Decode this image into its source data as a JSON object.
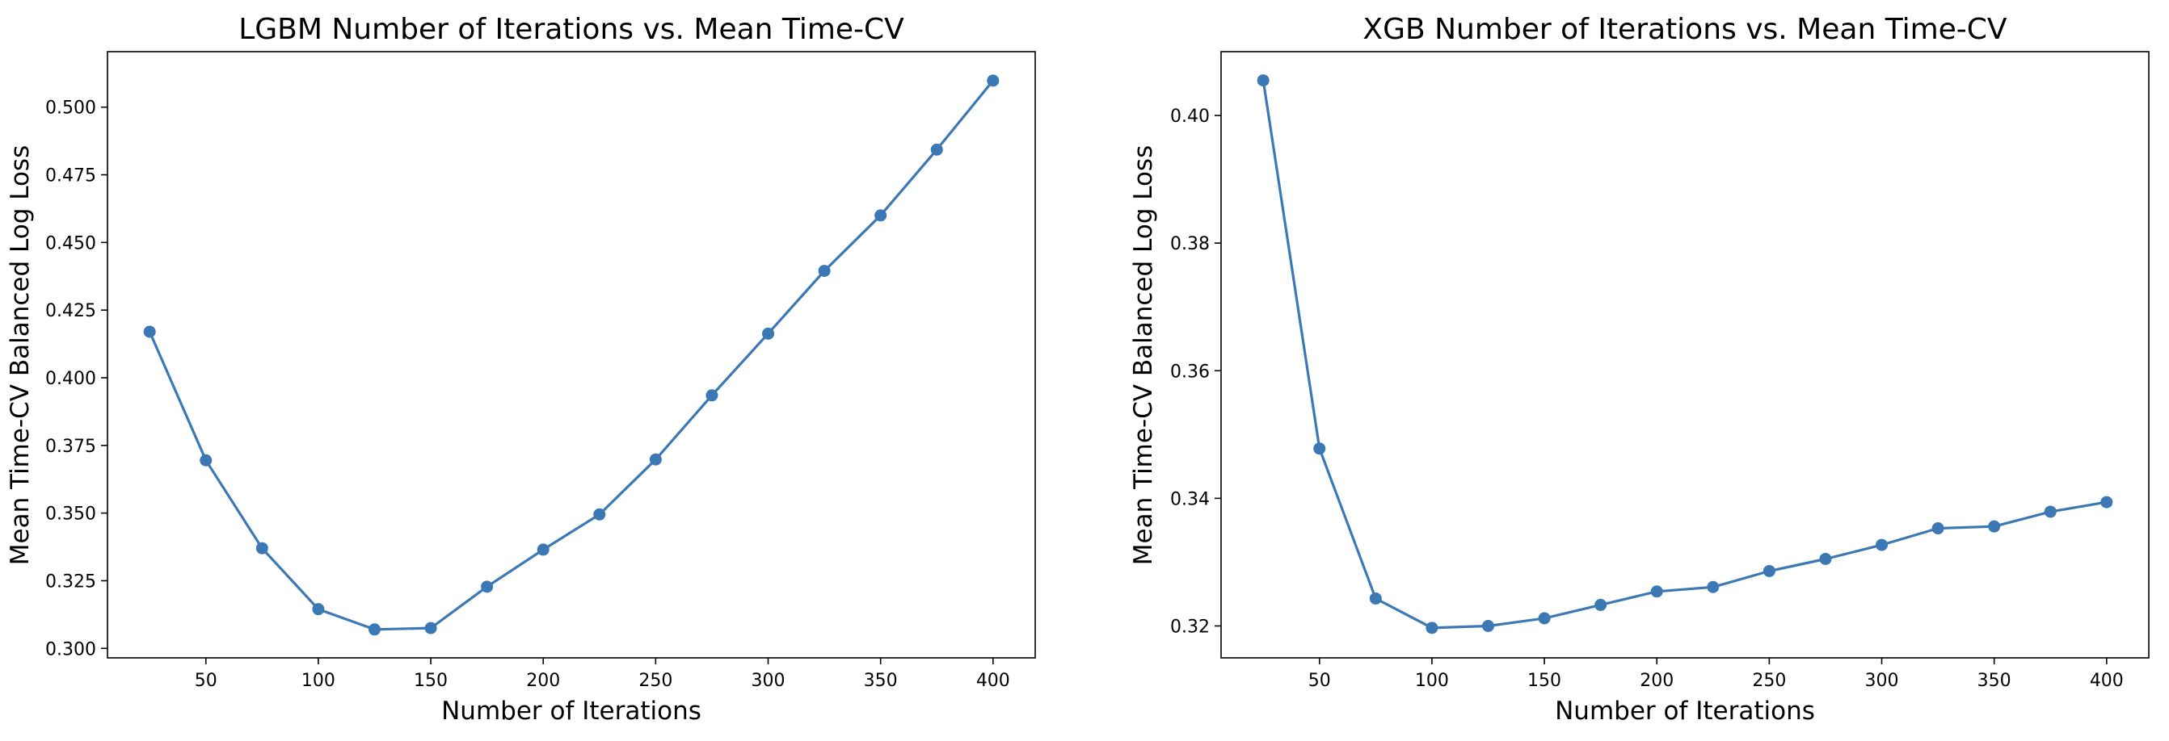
{
  "chart_data": [
    {
      "type": "line",
      "title": "LGBM Number of Iterations vs. Mean Time-CV",
      "xlabel": "Number of Iterations",
      "ylabel": "Mean Time-CV Balanced Log Loss",
      "color": "#3b78b4",
      "marker": "circle",
      "grid": false,
      "xlim": [
        6.25,
        418.75
      ],
      "ylim": [
        0.2965,
        0.5205
      ],
      "xticks": [
        50,
        100,
        150,
        200,
        250,
        300,
        350,
        400
      ],
      "yticks": [
        0.3,
        0.325,
        0.35,
        0.375,
        0.4,
        0.425,
        0.45,
        0.475,
        0.5
      ],
      "ytick_labels": [
        "0.300",
        "0.325",
        "0.350",
        "0.375",
        "0.400",
        "0.425",
        "0.450",
        "0.475",
        "0.500"
      ],
      "x": [
        25,
        50,
        75,
        100,
        125,
        150,
        175,
        200,
        225,
        250,
        275,
        300,
        325,
        350,
        375,
        400
      ],
      "values": [
        0.417,
        0.3695,
        0.337,
        0.3145,
        0.307,
        0.3075,
        0.3228,
        0.3365,
        0.3495,
        0.3698,
        0.3935,
        0.4163,
        0.4395,
        0.46,
        0.4843,
        0.5098
      ]
    },
    {
      "type": "line",
      "title": "XGB Number of Iterations vs. Mean Time-CV",
      "xlabel": "Number of Iterations",
      "ylabel": "Mean Time-CV Balanced Log Loss",
      "color": "#3b78b4",
      "marker": "circle",
      "grid": false,
      "xlim": [
        6.25,
        418.75
      ],
      "ylim": [
        0.315,
        0.41
      ],
      "xticks": [
        50,
        100,
        150,
        200,
        250,
        300,
        350,
        400
      ],
      "yticks": [
        0.32,
        0.34,
        0.36,
        0.38,
        0.4
      ],
      "ytick_labels": [
        "0.32",
        "0.34",
        "0.36",
        "0.38",
        "0.40"
      ],
      "x": [
        25,
        50,
        75,
        100,
        125,
        150,
        175,
        200,
        225,
        250,
        275,
        300,
        325,
        350,
        375,
        400
      ],
      "values": [
        0.4055,
        0.3478,
        0.3243,
        0.3197,
        0.32,
        0.3212,
        0.3233,
        0.3254,
        0.3261,
        0.3286,
        0.3305,
        0.3327,
        0.3353,
        0.3356,
        0.3379,
        0.3394
      ]
    }
  ]
}
